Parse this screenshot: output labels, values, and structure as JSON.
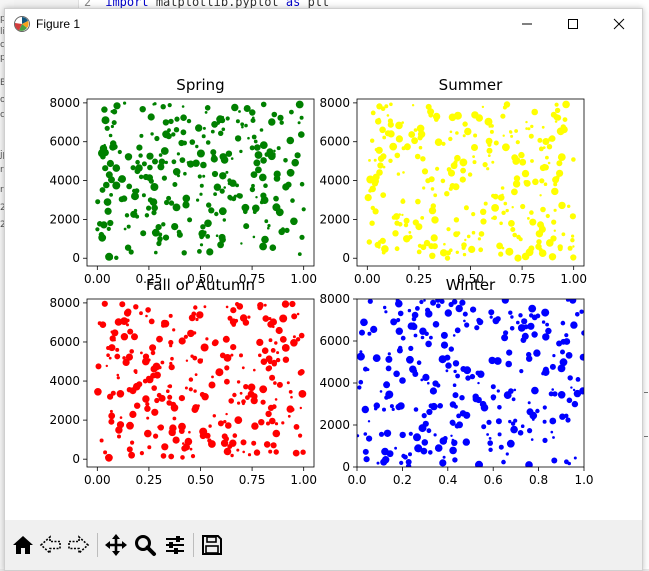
{
  "editor": {
    "line_number": "2",
    "code_keyword": "import",
    "code_rest": "matplotlib.pyplot",
    "code_as": "as",
    "code_alias": "plt"
  },
  "window": {
    "title": "Figure 1",
    "minimize_icon": "minimize-icon",
    "maximize_icon": "maximize-icon",
    "close_icon": "close-icon"
  },
  "toolbar": {
    "buttons": [
      "home-icon",
      "back-icon",
      "forward-icon",
      "pan-icon",
      "zoom-icon",
      "configure-subplots-icon",
      "save-icon"
    ]
  },
  "colors": {
    "spring": "#008000",
    "summer": "#ffff00",
    "autumn": "#ff0000",
    "winter": "#0000ff"
  },
  "chart_data": [
    {
      "type": "scatter",
      "title": "Spring",
      "color": "#008000",
      "xlim": [
        -0.05,
        1.05
      ],
      "ylim": [
        -400,
        8200
      ],
      "xticks": [
        "0.00",
        "0.25",
        "0.50",
        "0.75",
        "1.00"
      ],
      "xtick_values": [
        0,
        0.25,
        0.5,
        0.75,
        1
      ],
      "yticks": [
        "0",
        "2000",
        "4000",
        "6000",
        "8000"
      ],
      "ytick_values": [
        0,
        2000,
        4000,
        6000,
        8000
      ],
      "n_points": 300,
      "seed": 11,
      "y_range": [
        0,
        8000
      ]
    },
    {
      "type": "scatter",
      "title": "Summer",
      "color": "#ffff00",
      "xlim": [
        -0.05,
        1.05
      ],
      "ylim": [
        -400,
        8200
      ],
      "xticks": [
        "0.00",
        "0.25",
        "0.50",
        "0.75",
        "1.00"
      ],
      "xtick_values": [
        0,
        0.25,
        0.5,
        0.75,
        1
      ],
      "yticks": [
        "0",
        "2000",
        "4000",
        "6000",
        "8000"
      ],
      "ytick_values": [
        0,
        2000,
        4000,
        6000,
        8000
      ],
      "n_points": 300,
      "seed": 23,
      "y_range": [
        0,
        8000
      ]
    },
    {
      "type": "scatter",
      "title": "Fall or Autumn",
      "color": "#ff0000",
      "xlim": [
        -0.05,
        1.05
      ],
      "ylim": [
        -400,
        8200
      ],
      "xticks": [
        "0.00",
        "0.25",
        "0.50",
        "0.75",
        "1.00"
      ],
      "xtick_values": [
        0,
        0.25,
        0.5,
        0.75,
        1
      ],
      "yticks": [
        "0",
        "2000",
        "4000",
        "6000",
        "8000"
      ],
      "ytick_values": [
        0,
        2000,
        4000,
        6000,
        8000
      ],
      "n_points": 300,
      "seed": 37,
      "y_range": [
        0,
        8000
      ]
    },
    {
      "type": "scatter",
      "title": "Winter",
      "color": "#0000ff",
      "xlim": [
        0,
        1
      ],
      "ylim": [
        0,
        8000
      ],
      "xticks": [
        "0.0",
        "0.2",
        "0.4",
        "0.6",
        "0.8",
        "1.0"
      ],
      "xtick_values": [
        0,
        0.2,
        0.4,
        0.6,
        0.8,
        1
      ],
      "yticks": [
        "0",
        "2000",
        "4000",
        "6000",
        "8000"
      ],
      "ytick_values": [
        0,
        2000,
        4000,
        6000,
        8000
      ],
      "n_points": 300,
      "seed": 51,
      "y_range": [
        0,
        8000
      ]
    }
  ]
}
